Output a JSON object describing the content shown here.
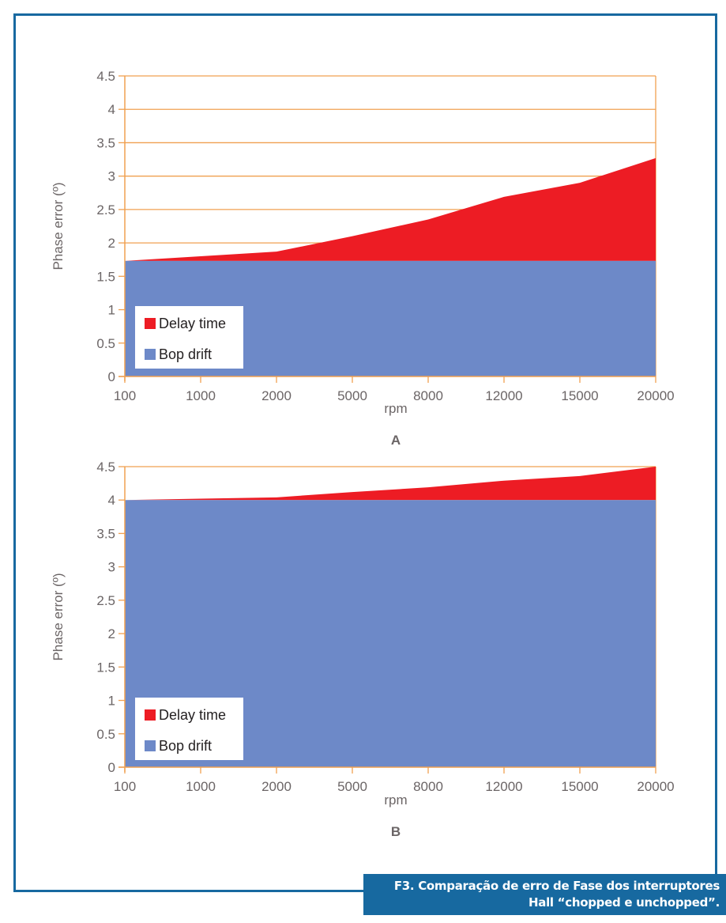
{
  "caption": {
    "line1": "F3. Comparação de erro de Fase dos interruptores",
    "line2": "Hall “chopped e unchopped”."
  },
  "colors": {
    "frame": "#1769a0",
    "grid": "#f0a050",
    "axis": "#f0a050",
    "delay_time": "#ed1c24",
    "bop_drift": "#6d89c8",
    "text": "#6b6566"
  },
  "chart_data": [
    {
      "id": "A",
      "type": "area",
      "stacked": true,
      "panel_label": "A",
      "title": "",
      "xlabel": "rpm",
      "ylabel": "Phase error (º)",
      "categories": [
        "100",
        "1000",
        "2000",
        "5000",
        "8000",
        "12000",
        "15000",
        "20000"
      ],
      "yticks": [
        "0",
        "0.5",
        "1",
        "1.5",
        "2",
        "2.5",
        "3",
        "3.5",
        "4",
        "4.5"
      ],
      "ylim": [
        0,
        4.5
      ],
      "grid": true,
      "legend": {
        "position": "bottom-left",
        "entries": [
          "Delay time",
          "Bop drift"
        ]
      },
      "series": [
        {
          "name": "Bop drift",
          "values": [
            1.73,
            1.73,
            1.73,
            1.73,
            1.73,
            1.73,
            1.73,
            1.73
          ]
        },
        {
          "name": "Delay time",
          "values": [
            0.0,
            0.07,
            0.14,
            0.37,
            0.62,
            0.96,
            1.17,
            1.54
          ]
        }
      ],
      "totals": [
        1.73,
        1.8,
        1.87,
        2.1,
        2.35,
        2.69,
        2.9,
        3.27
      ]
    },
    {
      "id": "B",
      "type": "area",
      "stacked": true,
      "panel_label": "B",
      "title": "",
      "xlabel": "rpm",
      "ylabel": "Phase error (º)",
      "categories": [
        "100",
        "1000",
        "2000",
        "5000",
        "8000",
        "12000",
        "15000",
        "20000"
      ],
      "yticks": [
        "0",
        "0.5",
        "1",
        "1.5",
        "2",
        "2.5",
        "3",
        "3.5",
        "4",
        "4.5"
      ],
      "ylim": [
        0,
        4.5
      ],
      "grid": false,
      "legend": {
        "position": "bottom-left",
        "entries": [
          "Delay time",
          "Bop drift"
        ]
      },
      "series": [
        {
          "name": "Bop drift",
          "values": [
            4.0,
            4.0,
            4.0,
            4.0,
            4.0,
            4.0,
            4.0,
            4.0
          ]
        },
        {
          "name": "Delay time",
          "values": [
            0.0,
            0.02,
            0.04,
            0.12,
            0.19,
            0.29,
            0.36,
            0.5
          ]
        }
      ],
      "totals": [
        4.0,
        4.02,
        4.04,
        4.12,
        4.19,
        4.29,
        4.36,
        4.5
      ]
    }
  ]
}
